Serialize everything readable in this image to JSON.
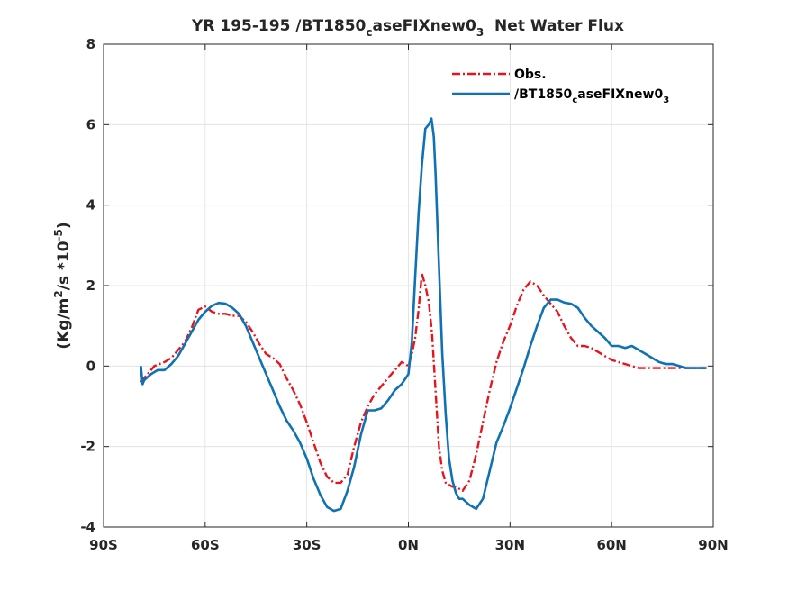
{
  "chart_data": {
    "type": "line",
    "title": {
      "main": "YR 195-195 /BT1850",
      "sub": "c",
      "mid": "aseFIXnew0",
      "sub2": "3",
      "tail": "  Net Water Flux"
    },
    "ylabel": {
      "pre": "(Kg/m",
      "sup1": "2",
      "mid": "/s *10",
      "sup2": "-5",
      "post": ")"
    },
    "xlim": [
      -90,
      90
    ],
    "ylim": [
      -4,
      8
    ],
    "grid": true,
    "legend_position": "top-right",
    "xticks": [
      {
        "value": -90,
        "label": "90S"
      },
      {
        "value": -60,
        "label": "60S"
      },
      {
        "value": -30,
        "label": "30S"
      },
      {
        "value": 0,
        "label": "0N"
      },
      {
        "value": 30,
        "label": "30N"
      },
      {
        "value": 60,
        "label": "60N"
      },
      {
        "value": 90,
        "label": "90N"
      }
    ],
    "yticks": [
      {
        "value": -4,
        "label": "-4"
      },
      {
        "value": -2,
        "label": "-2"
      },
      {
        "value": 0,
        "label": "0"
      },
      {
        "value": 2,
        "label": "2"
      },
      {
        "value": 4,
        "label": "4"
      },
      {
        "value": 6,
        "label": "6"
      },
      {
        "value": 8,
        "label": "8"
      }
    ],
    "series": [
      {
        "name": "Obs.",
        "color": "#e8141b",
        "dash": "dashdot",
        "x": [
          -79,
          -77,
          -75,
          -72,
          -70,
          -68,
          -66,
          -64,
          -62,
          -60,
          -58,
          -56,
          -54,
          -52,
          -50,
          -48,
          -46,
          -44,
          -42,
          -40,
          -38,
          -36,
          -34,
          -32,
          -30,
          -28,
          -26,
          -24,
          -22,
          -20,
          -18,
          -16,
          -14,
          -12,
          -10,
          -8,
          -6,
          -4,
          -2,
          0,
          1,
          2,
          3,
          4,
          5,
          6,
          7,
          8,
          9,
          10,
          11,
          12,
          13,
          14,
          15,
          16,
          18,
          20,
          22,
          24,
          26,
          28,
          30,
          32,
          34,
          36,
          38,
          40,
          42,
          44,
          46,
          48,
          50,
          52,
          54,
          56,
          58,
          60,
          62,
          64,
          66,
          68,
          70,
          72,
          74,
          76,
          78,
          80,
          82,
          84,
          86,
          88
        ],
        "y": [
          -0.4,
          -0.2,
          0.0,
          0.1,
          0.2,
          0.4,
          0.6,
          0.95,
          1.4,
          1.48,
          1.35,
          1.3,
          1.3,
          1.25,
          1.25,
          1.1,
          0.85,
          0.55,
          0.3,
          0.2,
          0.05,
          -0.3,
          -0.6,
          -0.95,
          -1.4,
          -1.9,
          -2.4,
          -2.75,
          -2.9,
          -2.9,
          -2.7,
          -2.0,
          -1.4,
          -1.0,
          -0.7,
          -0.5,
          -0.3,
          -0.1,
          0.1,
          0.0,
          0.3,
          0.7,
          1.4,
          2.3,
          2.0,
          1.6,
          0.8,
          -0.6,
          -2.0,
          -2.6,
          -2.9,
          -2.95,
          -3.0,
          -3.0,
          -3.05,
          -3.1,
          -2.85,
          -2.2,
          -1.4,
          -0.6,
          0.1,
          0.6,
          1.0,
          1.5,
          1.9,
          2.1,
          2.0,
          1.75,
          1.55,
          1.35,
          1.0,
          0.7,
          0.5,
          0.5,
          0.45,
          0.35,
          0.25,
          0.15,
          0.1,
          0.05,
          0.0,
          -0.05,
          -0.05,
          -0.05,
          -0.05,
          -0.05,
          -0.05,
          -0.05,
          -0.05,
          -0.05,
          -0.05,
          -0.05
        ]
      },
      {
        "name": "/BT1850caseFIXnew03",
        "label_parts": {
          "main": "/BT1850",
          "sub": "c",
          "mid": "aseFIXnew0",
          "sub2": "3"
        },
        "color": "#0f72b5",
        "dash": "solid",
        "x": [
          -79,
          -78.5,
          -78,
          -76,
          -74,
          -72,
          -70,
          -68,
          -66,
          -64,
          -62,
          -60,
          -58,
          -56,
          -54,
          -52,
          -50,
          -48,
          -46,
          -44,
          -42,
          -40,
          -38,
          -36,
          -34,
          -32,
          -30,
          -28,
          -26,
          -24,
          -22,
          -20,
          -18,
          -16,
          -14,
          -12,
          -10,
          -8,
          -6,
          -4,
          -2,
          0,
          1,
          2,
          3,
          4,
          5,
          6,
          6.8,
          7.5,
          8,
          9,
          10,
          11,
          12,
          13,
          14,
          15,
          16,
          18,
          20,
          22,
          24,
          26,
          28,
          30,
          32,
          34,
          36,
          38,
          40,
          42,
          44,
          46,
          48,
          50,
          52,
          54,
          56,
          58,
          60,
          62,
          64,
          66,
          68,
          70,
          72,
          74,
          76,
          78,
          80,
          82,
          84,
          86,
          88
        ],
        "y": [
          0.0,
          -0.45,
          -0.35,
          -0.2,
          -0.1,
          -0.1,
          0.05,
          0.25,
          0.55,
          0.85,
          1.15,
          1.35,
          1.5,
          1.57,
          1.55,
          1.45,
          1.3,
          1.0,
          0.6,
          0.2,
          -0.2,
          -0.6,
          -1.0,
          -1.35,
          -1.6,
          -1.9,
          -2.3,
          -2.8,
          -3.2,
          -3.5,
          -3.6,
          -3.55,
          -3.1,
          -2.5,
          -1.7,
          -1.1,
          -1.1,
          -1.05,
          -0.85,
          -0.6,
          -0.45,
          -0.2,
          0.6,
          2.2,
          3.8,
          5.0,
          5.9,
          6.0,
          6.15,
          5.7,
          4.8,
          2.5,
          0.3,
          -1.2,
          -2.3,
          -2.85,
          -3.15,
          -3.3,
          -3.3,
          -3.45,
          -3.55,
          -3.3,
          -2.6,
          -1.9,
          -1.5,
          -1.05,
          -0.55,
          -0.05,
          0.5,
          1.0,
          1.45,
          1.65,
          1.65,
          1.58,
          1.55,
          1.45,
          1.2,
          1.0,
          0.85,
          0.7,
          0.5,
          0.5,
          0.45,
          0.5,
          0.4,
          0.3,
          0.2,
          0.1,
          0.05,
          0.05,
          0.0,
          -0.05,
          -0.05,
          -0.05,
          -0.05
        ]
      }
    ]
  }
}
